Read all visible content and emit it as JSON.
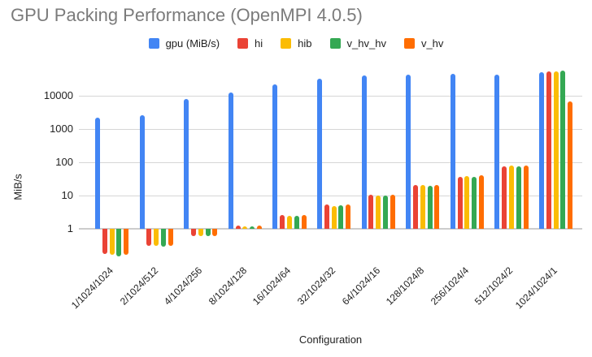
{
  "chart_data": {
    "type": "bar",
    "title": "GPU Packing Performance (OpenMPI 4.0.5)",
    "xlabel": "Configuration",
    "ylabel": "MiB/s",
    "y_scale": "log",
    "y_ticks": [
      1,
      10,
      100,
      1000,
      10000
    ],
    "ylim": [
      0.12,
      63000
    ],
    "grid": true,
    "legend_position": "top",
    "categories": [
      "1/1024/1024",
      "2/1024/512",
      "4/1024/256",
      "8/1024/128",
      "16/1024/64",
      "32/1024/32",
      "64/1024/16",
      "128/1024/8",
      "256/1024/4",
      "512/1024/2",
      "1024/1024/1"
    ],
    "series": [
      {
        "name": "gpu (MiB/s)",
        "color": "#4285F4",
        "values": [
          2200,
          2600,
          8000,
          12500,
          22500,
          32000,
          40000,
          42000,
          45000,
          43000,
          51000
        ]
      },
      {
        "name": "hi",
        "color": "#EA4335",
        "values": [
          0.18,
          0.3,
          0.62,
          1.25,
          2.6,
          5.3,
          10.5,
          21,
          36,
          75,
          55000
        ]
      },
      {
        "name": "hib",
        "color": "#FBBC04",
        "values": [
          0.17,
          0.31,
          0.6,
          1.2,
          2.4,
          4.7,
          10.0,
          21,
          38,
          82,
          53000
        ]
      },
      {
        "name": "v_hv_hv",
        "color": "#34A853",
        "values": [
          0.15,
          0.29,
          0.6,
          1.2,
          2.5,
          5.0,
          10.0,
          20,
          37,
          76,
          57000
        ]
      },
      {
        "name": "v_hv",
        "color": "#FF6D01",
        "values": [
          0.17,
          0.31,
          0.62,
          1.25,
          2.6,
          5.3,
          10.5,
          21,
          40,
          78,
          6800
        ]
      }
    ]
  }
}
